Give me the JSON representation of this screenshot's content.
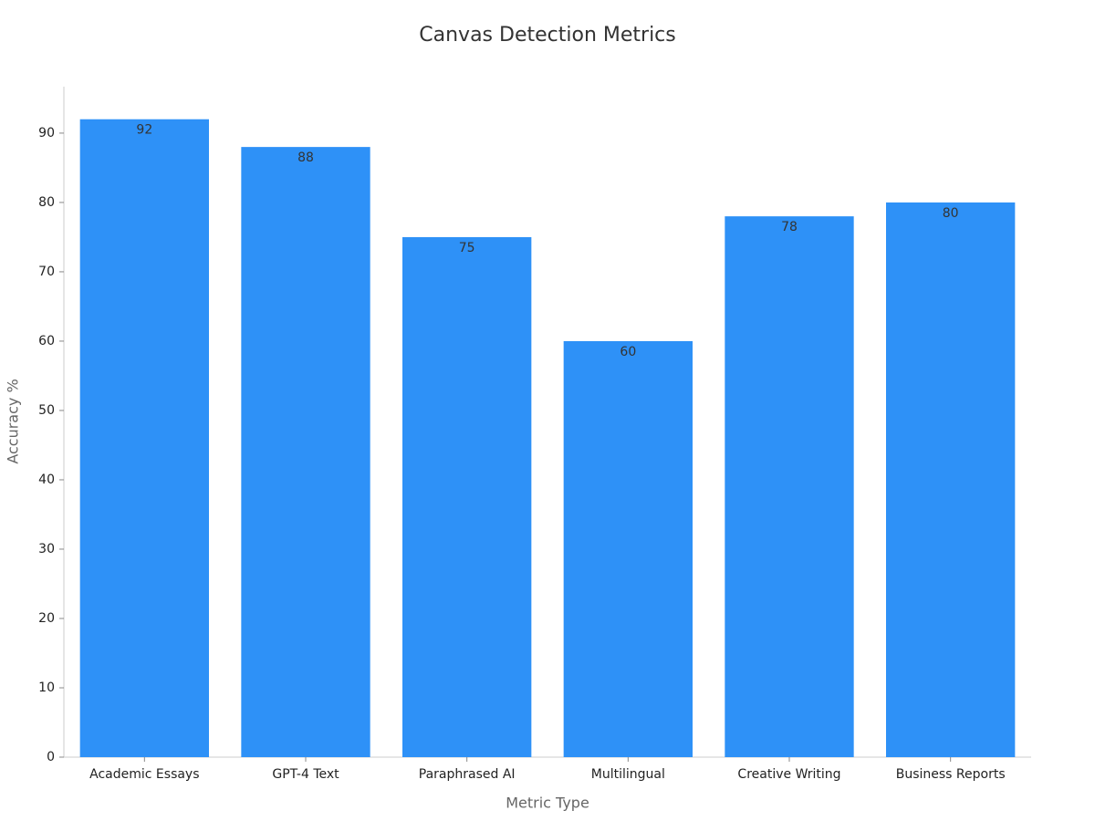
{
  "chart_data": {
    "type": "bar",
    "title": "Canvas Detection Metrics",
    "x_label": "Metric Type",
    "y_label": "Accuracy %",
    "categories": [
      "Academic Essays",
      "GPT-4 Text",
      "Paraphrased AI",
      "Multilingual",
      "Creative Writing",
      "Business Reports"
    ],
    "values": [
      92,
      88,
      75,
      60,
      78,
      80
    ],
    "color": "#2e91f7",
    "ylim": [
      0,
      96.7
    ],
    "yticks": [
      0,
      10,
      20,
      30,
      40,
      50,
      60,
      70,
      80,
      90
    ],
    "grid": false
  }
}
